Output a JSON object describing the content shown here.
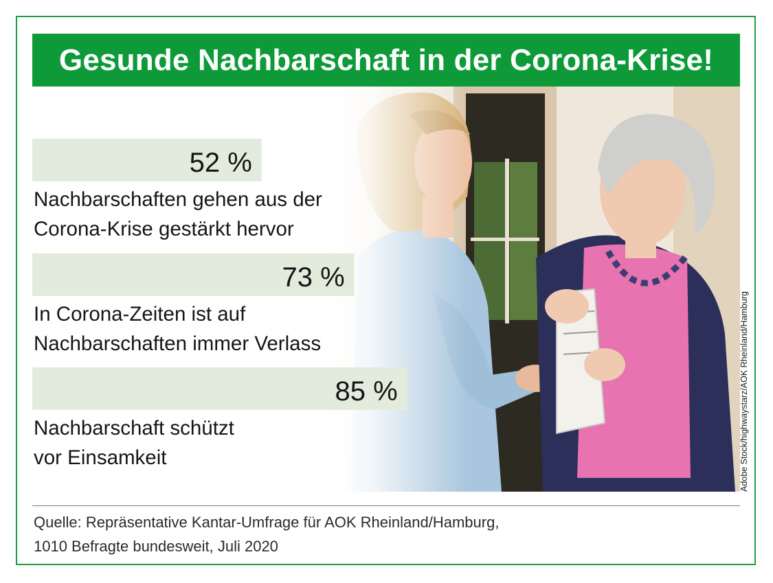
{
  "title": "Gesunde Nachbarschaft in der Corona-Krise!",
  "photo_credit": "Adobe Stock/highwaystarz/AOK Rheinland/Hamburg",
  "source": {
    "line1": "Quelle: Repräsentative Kantar-Umfrage für AOK Rheinland/Hamburg,",
    "line2": "1010 Befragte bundesweit, Juli 2020"
  },
  "colors": {
    "title_bar": "#0f9a3a",
    "frame": "#1e9e3f",
    "bar": "#e3ecdc",
    "text": "#151515",
    "source_rule": "#6a7f98"
  },
  "chart_data": {
    "type": "bar",
    "orientation": "horizontal",
    "title": "Gesunde Nachbarschaft in der Corona-Krise!",
    "unit": "%",
    "xlim": [
      0,
      100
    ],
    "grid": false,
    "categories": [
      [
        "Nachbarschaften gehen aus der",
        "Corona-Krise gestärkt hervor"
      ],
      [
        "In Corona-Zeiten ist auf",
        "Nachbarschaften immer Verlass"
      ],
      [
        "Nachbarschaft schützt",
        "vor Einsamkeit"
      ]
    ],
    "values": [
      52,
      73,
      85
    ],
    "value_labels": [
      "52 %",
      "73 %",
      "85 %"
    ]
  }
}
